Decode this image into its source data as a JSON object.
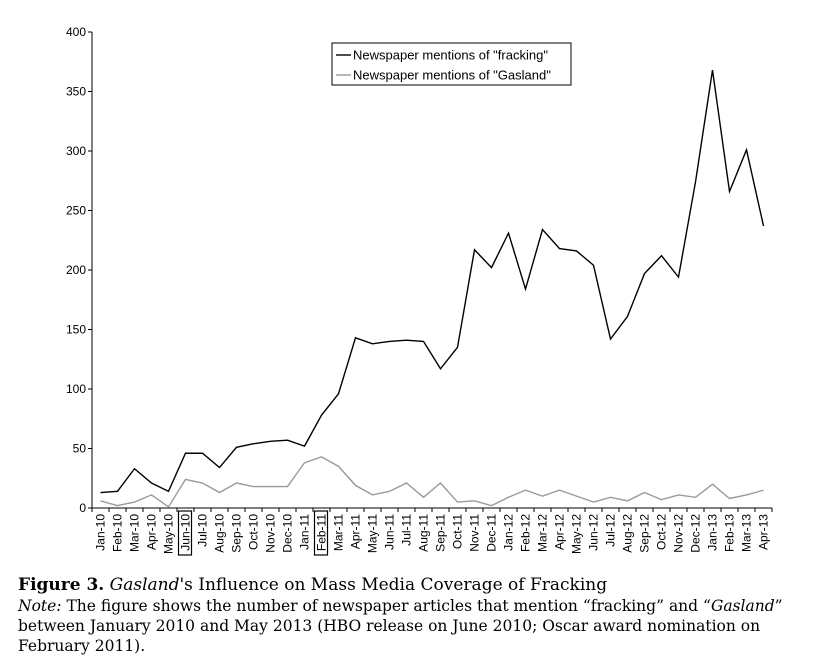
{
  "chart_data": {
    "type": "line",
    "categories": [
      "Jan-10",
      "Feb-10",
      "Mar-10",
      "Apr-10",
      "May-10",
      "Jun-10",
      "Jul-10",
      "Aug-10",
      "Sep-10",
      "Oct-10",
      "Nov-10",
      "Dec-10",
      "Jan-11",
      "Feb-11",
      "Mar-11",
      "Apr-11",
      "May-11",
      "Jun-11",
      "Jul-11",
      "Aug-11",
      "Sep-11",
      "Oct-11",
      "Nov-11",
      "Dec-11",
      "Jan-12",
      "Feb-12",
      "Mar-12",
      "Apr-12",
      "May-12",
      "Jun-12",
      "Jul-12",
      "Aug-12",
      "Sep-12",
      "Oct-12",
      "Nov-12",
      "Dec-12",
      "Jan-13",
      "Feb-13",
      "Mar-13",
      "Apr-13"
    ],
    "boxed_categories": [
      "Jun-10",
      "Feb-11"
    ],
    "series": [
      {
        "name": "Newspaper mentions of \"fracking\"",
        "color": "#000000",
        "values": [
          13,
          14,
          33,
          21,
          14,
          46,
          46,
          34,
          51,
          54,
          56,
          57,
          52,
          78,
          96,
          143,
          138,
          140,
          141,
          140,
          117,
          135,
          217,
          202,
          231,
          184,
          234,
          218,
          216,
          204,
          142,
          161,
          197,
          212,
          194,
          274,
          368,
          266,
          301,
          237
        ]
      },
      {
        "name": "Newspaper mentions of \"Gasland\"",
        "color": "#9a9a9a",
        "values": [
          6,
          2,
          5,
          11,
          1,
          24,
          21,
          13,
          21,
          18,
          18,
          18,
          38,
          43,
          35,
          19,
          11,
          14,
          21,
          9,
          21,
          5,
          6,
          2,
          9,
          15,
          10,
          15,
          10,
          5,
          9,
          6,
          13,
          7,
          11,
          9,
          20,
          8,
          11,
          15
        ]
      }
    ],
    "y_ticks": [
      "0",
      "50",
      "100",
      "150",
      "200",
      "250",
      "300",
      "350",
      "400"
    ],
    "ylim": [
      0,
      400
    ],
    "legend_position": "top-right"
  },
  "caption": {
    "figure_label": "Figure 3.",
    "title_italic": "Gasland",
    "title_rest": "'s Influence on Mass Media Coverage of Fracking",
    "note_label": "Note:",
    "note_text_1": " The figure shows the number of newspaper articles that mention “fracking” and “",
    "note_italic": "Gasland",
    "note_text_2": "” between January 2010 and May 2013 (HBO release on June 2010; Oscar award nomination on February 2011)."
  }
}
